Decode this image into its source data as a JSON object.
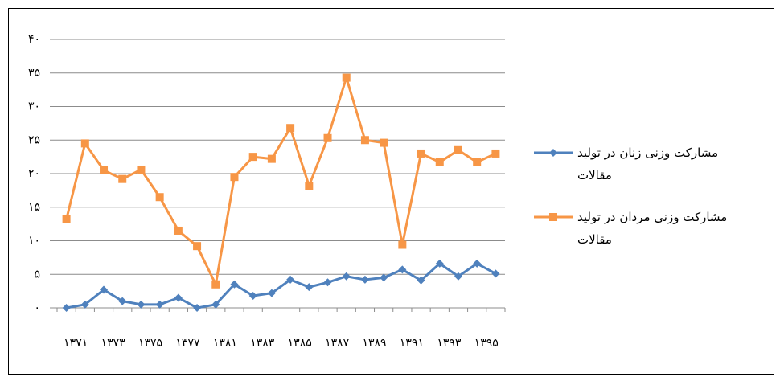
{
  "chart_data": {
    "type": "line",
    "categories": [
      "۱۳۷۱",
      null,
      "۱۳۷۳",
      null,
      "۱۳۷۵",
      null,
      "۱۳۷۷",
      null,
      "۱۳۸۱",
      null,
      "۱۳۸۳",
      null,
      "۱۳۸۵",
      null,
      "۱۳۸۷",
      null,
      "۱۳۸۹",
      null,
      "۱۳۹۱",
      null,
      "۱۳۹۳",
      null,
      "۱۳۹۵",
      null
    ],
    "series": [
      {
        "name": "مشارکت وزنی زنان در تولید مقالات",
        "color": "#4f81bd",
        "marker": "diamond",
        "values": [
          0,
          0.5,
          2.7,
          1,
          0.5,
          0.5,
          1.5,
          0,
          0.5,
          3.5,
          1.8,
          2.2,
          4.2,
          3.1,
          3.8,
          4.7,
          4.2,
          4.5,
          5.7,
          4.1,
          6.6,
          4.7,
          6.6,
          5.1
        ]
      },
      {
        "name": "مشارکت وزنی مردان در تولید مقالات",
        "color": "#f79646",
        "marker": "square",
        "values": [
          13.2,
          24.5,
          20.5,
          19.2,
          20.6,
          16.5,
          11.5,
          9.2,
          3.5,
          19.5,
          22.5,
          22.2,
          26.8,
          18.2,
          25.3,
          34.3,
          25,
          24.6,
          9.4,
          23,
          21.7,
          23.5,
          21.7,
          23
        ]
      }
    ],
    "ylim": [
      0,
      40
    ],
    "yticks": [
      {
        "value": 0,
        "label": "۰"
      },
      {
        "value": 5,
        "label": "۵"
      },
      {
        "value": 10,
        "label": "۱۰"
      },
      {
        "value": 15,
        "label": "۱۵"
      },
      {
        "value": 20,
        "label": "۲۰"
      },
      {
        "value": 25,
        "label": "۲۵"
      },
      {
        "value": 30,
        "label": "۳۰"
      },
      {
        "value": 35,
        "label": "۳۵"
      },
      {
        "value": 40,
        "label": "۴۰"
      }
    ],
    "grid": true,
    "legend": "right"
  }
}
